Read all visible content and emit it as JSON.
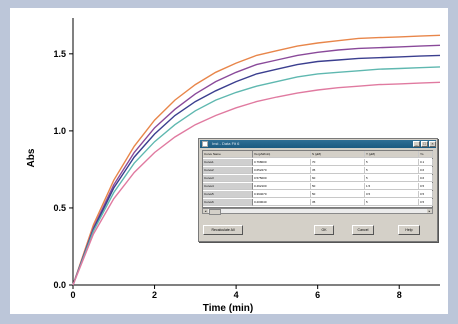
{
  "chart_data": {
    "type": "line",
    "xlabel": "Time (min)",
    "ylabel": "Abs",
    "xlim": [
      0,
      9
    ],
    "ylim": [
      0.0,
      1.7
    ],
    "xticks": [
      0,
      2,
      4,
      6,
      8
    ],
    "yticks": [
      "0.0",
      "0.5",
      "1.0",
      "1.5"
    ],
    "grid": false,
    "series": [
      {
        "color": "#e8864a",
        "x": [
          0,
          0.5,
          1,
          1.5,
          2,
          2.5,
          3,
          3.5,
          4,
          4.5,
          5,
          5.5,
          6,
          6.5,
          7,
          7.5,
          8,
          8.5,
          9
        ],
        "y": [
          0.0,
          0.39,
          0.68,
          0.9,
          1.07,
          1.2,
          1.3,
          1.38,
          1.44,
          1.49,
          1.52,
          1.55,
          1.57,
          1.585,
          1.6,
          1.605,
          1.61,
          1.615,
          1.62
        ]
      },
      {
        "color": "#8a4a9a",
        "x": [
          0,
          0.5,
          1,
          1.5,
          2,
          2.5,
          3,
          3.5,
          4,
          4.5,
          5,
          5.5,
          6,
          6.5,
          7,
          7.5,
          8,
          8.5,
          9
        ],
        "y": [
          0.0,
          0.37,
          0.65,
          0.86,
          1.02,
          1.14,
          1.24,
          1.32,
          1.38,
          1.43,
          1.46,
          1.49,
          1.51,
          1.525,
          1.535,
          1.54,
          1.545,
          1.55,
          1.555
        ]
      },
      {
        "color": "#3b3f8f",
        "x": [
          0,
          0.5,
          1,
          1.5,
          2,
          2.5,
          3,
          3.5,
          4,
          4.5,
          5,
          5.5,
          6,
          6.5,
          7,
          7.5,
          8,
          8.5,
          9
        ],
        "y": [
          0.0,
          0.36,
          0.63,
          0.83,
          0.98,
          1.1,
          1.19,
          1.26,
          1.32,
          1.37,
          1.4,
          1.43,
          1.45,
          1.46,
          1.47,
          1.475,
          1.48,
          1.485,
          1.49
        ]
      },
      {
        "color": "#5fb8b0",
        "x": [
          0,
          0.5,
          1,
          1.5,
          2,
          2.5,
          3,
          3.5,
          4,
          4.5,
          5,
          5.5,
          6,
          6.5,
          7,
          7.5,
          8,
          8.5,
          9
        ],
        "y": [
          0.0,
          0.35,
          0.6,
          0.79,
          0.93,
          1.04,
          1.13,
          1.2,
          1.25,
          1.29,
          1.32,
          1.35,
          1.37,
          1.38,
          1.39,
          1.4,
          1.405,
          1.41,
          1.415
        ]
      },
      {
        "color": "#e07aa0",
        "x": [
          0,
          0.5,
          1,
          1.5,
          2,
          2.5,
          3,
          3.5,
          4,
          4.5,
          5,
          5.5,
          6,
          6.5,
          7,
          7.5,
          8,
          8.5,
          9
        ],
        "y": [
          0.0,
          0.33,
          0.56,
          0.73,
          0.86,
          0.96,
          1.04,
          1.1,
          1.15,
          1.19,
          1.22,
          1.245,
          1.265,
          1.28,
          1.29,
          1.3,
          1.305,
          1.31,
          1.315
        ]
      }
    ]
  },
  "dialog": {
    "title": "Inst - Data Fit 6",
    "columns": [
      "Curve Name",
      "Vo (μM/min)",
      "S (μM)",
      "Y (μM)",
      "Yo"
    ],
    "rows": [
      [
        "Curve1",
        "0.768000",
        "70",
        "5",
        "0.1"
      ],
      [
        "Curve2",
        "0.652270",
        "35",
        "5",
        "0.6"
      ],
      [
        "Curve3",
        "0.575000",
        "60",
        "5",
        "0.6"
      ],
      [
        "Curve4",
        "0.492100",
        "50",
        "1.5",
        "0.5"
      ],
      [
        "Curve5",
        "0.394070",
        "50",
        "0.5",
        "0.5"
      ],
      [
        "Curve6",
        "0.200040",
        "35",
        "5",
        "0.5"
      ]
    ],
    "buttons": {
      "recalculate": "Recalculate All",
      "ok": "OK",
      "cancel": "Cancel",
      "help": "Help"
    }
  }
}
